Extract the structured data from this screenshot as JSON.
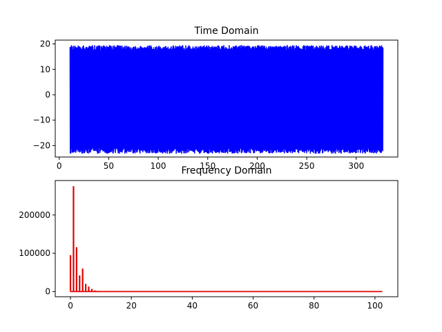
{
  "chart_data": [
    {
      "type": "line",
      "title": "Time Domain",
      "xlabel": "",
      "ylabel": "",
      "xlim": [
        -4,
        342
      ],
      "ylim": [
        -24.5,
        21.5
      ],
      "xticks": [
        0,
        50,
        100,
        150,
        200,
        250,
        300
      ],
      "yticks": [
        -20,
        -10,
        0,
        10,
        20
      ],
      "grid": false,
      "series": [
        {
          "color": "#0000ff",
          "x_range": [
            11,
            327
          ],
          "y_min_envelope": [
            -21,
            -23.2
          ],
          "y_max_envelope": [
            17.5,
            19.5
          ],
          "description_of_shape": "dense oscillation filling band"
        }
      ]
    },
    {
      "type": "line",
      "title": "Frequency Domain",
      "xlabel": "",
      "ylabel": "",
      "xlim": [
        -5,
        107.5
      ],
      "ylim": [
        -13500,
        290000
      ],
      "xticks": [
        0,
        20,
        40,
        60,
        80,
        100
      ],
      "yticks": [
        0,
        100000,
        200000
      ],
      "grid": false,
      "series": [
        {
          "color": "#e00000",
          "peaks": [
            {
              "x": 0.0,
              "y": 95000
            },
            {
              "x": 1.0,
              "y": 275000
            },
            {
              "x": 2.0,
              "y": 116000
            },
            {
              "x": 3.0,
              "y": 42000
            },
            {
              "x": 4.0,
              "y": 60000
            },
            {
              "x": 5.0,
              "y": 20000
            },
            {
              "x": 6.0,
              "y": 13000
            },
            {
              "x": 7.0,
              "y": 7000
            },
            {
              "x": 8.0,
              "y": 3000
            },
            {
              "x": 9.0,
              "y": 2000
            },
            {
              "x": 10.0,
              "y": 1000
            }
          ],
          "x_end": 102.4,
          "baseline": 0
        }
      ]
    }
  ]
}
